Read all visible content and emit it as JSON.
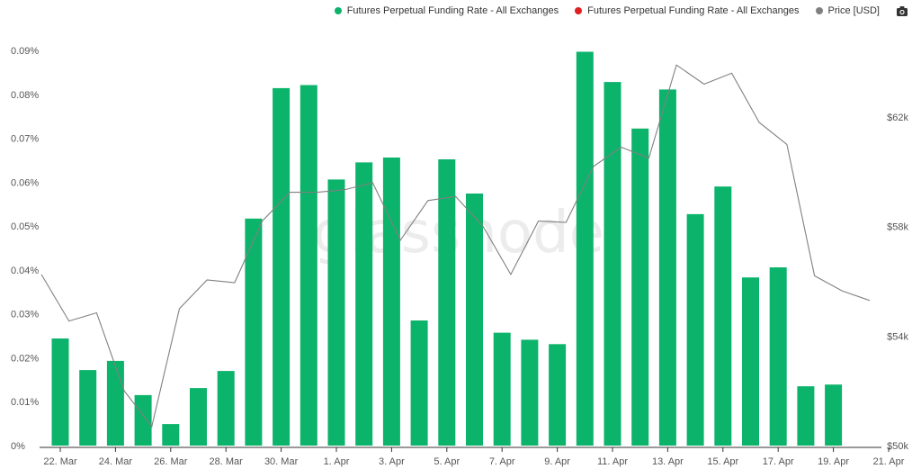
{
  "legend": {
    "items": [
      {
        "label": "Futures Perpetual Funding Rate - All Exchanges",
        "color": "#0cb36b"
      },
      {
        "label": "Futures Perpetual Funding Rate - All Exchanges",
        "color": "#e02020"
      },
      {
        "label": "Price [USD]",
        "color": "#808080"
      }
    ],
    "camera_icon": "camera-icon"
  },
  "watermark": "glassnode",
  "chart_data": {
    "type": "bar",
    "series": [
      {
        "name": "Futures Perpetual Funding Rate - All Exchanges",
        "type": "bar",
        "color": "#0cb36b",
        "axis": "left",
        "values": [
          0.0244,
          0.0172,
          0.0193,
          0.0115,
          0.0049,
          0.0131,
          0.017,
          0.0517,
          0.0814,
          0.0821,
          0.0606,
          0.0645,
          0.0656,
          0.0285,
          0.0652,
          0.0574,
          0.0257,
          0.0241,
          0.0231,
          0.0897,
          0.0828,
          0.0722,
          0.0811,
          0.0527,
          0.059,
          0.0383,
          0.0406,
          0.0135,
          0.0139
        ]
      },
      {
        "name": "Price [USD]",
        "type": "line",
        "color": "#808080",
        "axis": "right",
        "values": [
          56250,
          54550,
          54850,
          52000,
          50700,
          55000,
          56050,
          55950,
          58200,
          59250,
          59250,
          59350,
          59600,
          57500,
          58950,
          59100,
          58000,
          56250,
          58200,
          58150,
          60200,
          60900,
          60500,
          63900,
          63200,
          63600,
          61800,
          61000,
          56200,
          55650,
          55300
        ]
      }
    ],
    "x_ticks": [
      "22. Mar",
      "24. Mar",
      "26. Mar",
      "28. Mar",
      "30. Mar",
      "1. Apr",
      "3. Apr",
      "5. Apr",
      "7. Apr",
      "9. Apr",
      "11. Apr",
      "13. Apr",
      "15. Apr",
      "17. Apr",
      "19. Apr",
      "21. Apr"
    ],
    "y_ticks_left": [
      "0%",
      "0.01%",
      "0.02%",
      "0.03%",
      "0.04%",
      "0.05%",
      "0.06%",
      "0.07%",
      "0.08%",
      "0.09%"
    ],
    "y_ticks_right": [
      "$50k",
      "$54k",
      "$58k",
      "$62k"
    ],
    "ylim_left": [
      0,
      0.09
    ],
    "ylim_right": [
      50000,
      62000
    ],
    "grid": false
  }
}
